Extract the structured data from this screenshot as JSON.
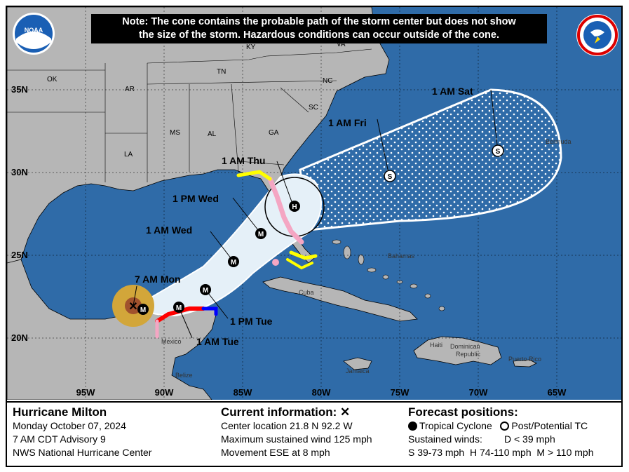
{
  "note": {
    "line1": "Note: The cone contains the probable path of the storm center but does not show",
    "line2": "the size of the storm. Hazardous conditions can occur outside of the cone."
  },
  "logos": {
    "noaa_text": "NOAA",
    "nws_text": "NATIONAL WEATHER SERVICE"
  },
  "states": [
    "OK",
    "AR",
    "TN",
    "KY",
    "VA",
    "NC",
    "SC",
    "GA",
    "AL",
    "MS",
    "LA"
  ],
  "places": [
    "Bermuda",
    "Bahamas",
    "Cuba",
    "Haiti",
    "Dominican",
    "Republic",
    "Jamaica",
    "Puerto Rico",
    "Mexico",
    "Belize"
  ],
  "lat_labels": [
    "35N",
    "30N",
    "25N",
    "20N"
  ],
  "lon_labels": [
    "95W",
    "90W",
    "85W",
    "80W",
    "75W",
    "70W",
    "65W"
  ],
  "track_labels": [
    "7 AM Mon",
    "1 AM Tue",
    "1 PM Tue",
    "1 AM Wed",
    "1 PM Wed",
    "1 AM Thu",
    "1 AM Fri",
    "1 AM Sat"
  ],
  "markers": {
    "m": "M",
    "h": "H",
    "s": "S",
    "current": "✕"
  },
  "legend": {
    "storm": {
      "title": "Hurricane Milton",
      "date": "Monday October 07, 2024",
      "advisory": "7 AM CDT Advisory 9",
      "agency": "NWS National Hurricane Center"
    },
    "current": {
      "title": "Current information:",
      "symbol": "✕",
      "location": "Center location 21.8 N 92.2 W",
      "wind": "Maximum sustained wind 125 mph",
      "movement": "Movement ESE at 8 mph"
    },
    "forecast": {
      "title": "Forecast positions:",
      "tc": "Tropical Cyclone",
      "post": "Post/Potential TC",
      "sustained": "Sustained winds:",
      "d": "D < 39 mph",
      "s": "S 39-73 mph",
      "h": "H 74-110 mph",
      "m": "M > 110 mph"
    }
  },
  "colors": {
    "ocean": "#2f6ba8",
    "land": "#b6b6b6",
    "cone": "#e5f0f8",
    "watch_pink": "#f4a6c3",
    "warning_red": "#ff0000",
    "tropical_watch": "#ffff00",
    "tropical_warning": "#0000ff",
    "wind_field": "#d2a63a"
  }
}
